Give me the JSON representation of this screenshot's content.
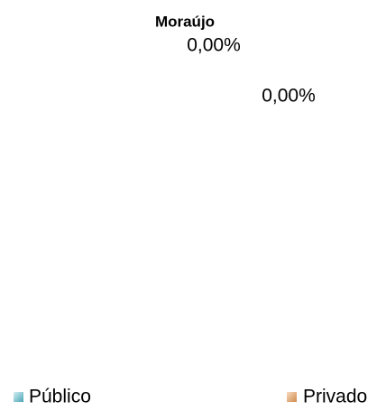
{
  "chart_data": {
    "type": "pie",
    "title": "Moraújo",
    "categories": [
      "Público",
      "Privado"
    ],
    "values": [
      0,
      0
    ],
    "value_labels": [
      "0,00%",
      "0,00%"
    ],
    "colors": [
      "#6cbcca",
      "#e3a873"
    ],
    "legend": "bottom"
  }
}
